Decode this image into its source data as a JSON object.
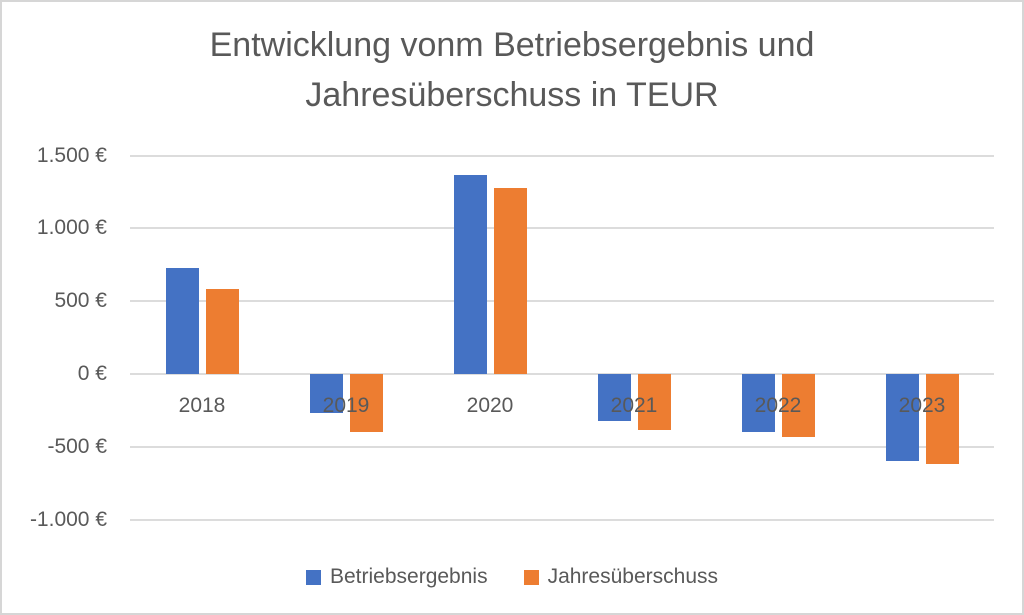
{
  "window": {
    "background": "#FFFFFF",
    "border_color": "#D6D6D6"
  },
  "chart_data": {
    "type": "bar",
    "title": "Entwicklung vonm Betriebsergebnis und Jahresüberschuss in TEUR",
    "categories": [
      "2018",
      "2019",
      "2020",
      "2021",
      "2022",
      "2023"
    ],
    "series": [
      {
        "name": "Betriebsergebnis",
        "color": "#4472C4",
        "values": [
          730,
          -270,
          1370,
          -320,
          -395,
          -600
        ]
      },
      {
        "name": "Jahresüberschuss",
        "color": "#ED7D31",
        "values": [
          585,
          -400,
          1275,
          -385,
          -430,
          -615
        ]
      }
    ],
    "xlabel": "",
    "ylabel": "",
    "ylim": [
      -1000,
      1500
    ],
    "ytick_interval": 500,
    "yticks": [
      {
        "value": 1500,
        "label": "1.500 €"
      },
      {
        "value": 1000,
        "label": "1.000 €"
      },
      {
        "value": 500,
        "label": "500 €"
      },
      {
        "value": 0,
        "label": "0 €"
      },
      {
        "value": -500,
        "label": "-500 €"
      },
      {
        "value": -1000,
        "label": "-1.000 €"
      }
    ],
    "grid": true,
    "legend_position": "bottom",
    "text_color": "#595959",
    "gridline_color": "#DCDCDC"
  }
}
